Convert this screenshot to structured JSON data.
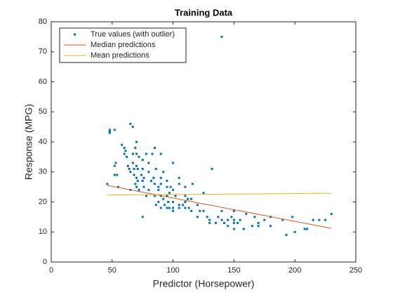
{
  "chart_data": {
    "type": "scatter",
    "title": "Training Data",
    "x_label": "Predictor (Horsepower)",
    "y_label": "Response (MPG)",
    "xlim": [
      0,
      250
    ],
    "xticks": [
      0,
      50,
      100,
      150,
      200,
      250
    ],
    "ylim": [
      0,
      80
    ],
    "yticks": [
      0,
      10,
      20,
      30,
      40,
      50,
      60,
      70,
      80
    ],
    "legend_position": "northwest",
    "series": [
      {
        "name": "True values (with outlier)",
        "type": "scatter",
        "color": "#0072bd",
        "x": [
          46,
          48,
          48,
          48,
          52,
          52,
          52,
          53,
          54,
          55,
          58,
          60,
          60,
          61,
          62,
          63,
          64,
          65,
          65,
          65,
          67,
          67,
          67,
          68,
          68,
          69,
          69,
          70,
          70,
          70,
          70,
          70,
          71,
          71,
          72,
          72,
          74,
          75,
          75,
          75,
          75,
          76,
          76,
          78,
          78,
          80,
          80,
          80,
          82,
          83,
          84,
          85,
          85,
          85,
          86,
          86,
          88,
          88,
          88,
          90,
          90,
          90,
          90,
          90,
          92,
          92,
          93,
          95,
          95,
          95,
          95,
          96,
          97,
          97,
          98,
          100,
          100,
          100,
          100,
          100,
          102,
          105,
          105,
          105,
          105,
          108,
          110,
          110,
          110,
          110,
          112,
          113,
          115,
          115,
          116,
          120,
          120,
          122,
          125,
          125,
          128,
          130,
          130,
          132,
          135,
          137,
          140,
          140,
          140,
          142,
          145,
          145,
          148,
          150,
          150,
          150,
          150,
          153,
          155,
          158,
          160,
          165,
          167,
          170,
          170,
          175,
          180,
          180,
          190,
          193,
          198,
          200,
          208,
          210,
          215,
          220,
          225,
          230
        ],
        "values": [
          26,
          44,
          43,
          43.5,
          29,
          32,
          44,
          33,
          29,
          25,
          39,
          36,
          38,
          37,
          35,
          32,
          31,
          30,
          46,
          24,
          45,
          36,
          33,
          31,
          29,
          38,
          26,
          32,
          28,
          25,
          40,
          36,
          31,
          27,
          35,
          24,
          29,
          27,
          31,
          34,
          15,
          28,
          25,
          36,
          22,
          30,
          24,
          33,
          27,
          36,
          28,
          22,
          26,
          38,
          19,
          31,
          25,
          20,
          24,
          28,
          18,
          22,
          26,
          36,
          21,
          30,
          19,
          25,
          18,
          22,
          27,
          20,
          23,
          18,
          25,
          20,
          18,
          17,
          24,
          33,
          22,
          18,
          26,
          19,
          28,
          19,
          20,
          18,
          22,
          25,
          21,
          18,
          21,
          17,
          26,
          19,
          15,
          17,
          17,
          23,
          15,
          13,
          14,
          31,
          13,
          15,
          75,
          14,
          17,
          13,
          12,
          14,
          15,
          14,
          13,
          17,
          11,
          13,
          14,
          11,
          16,
          12,
          15,
          13,
          12,
          14,
          12,
          15,
          14,
          9,
          15,
          10,
          11,
          11,
          14,
          14,
          14,
          16
        ]
      },
      {
        "name": "Median predictions",
        "type": "line",
        "color": "#d95319",
        "x": [
          46,
          230
        ],
        "values": [
          25.5,
          11.2
        ]
      },
      {
        "name": "Mean predictions",
        "type": "line",
        "color": "#edb120",
        "x": [
          46,
          230
        ],
        "values": [
          22.3,
          22.9
        ]
      }
    ]
  }
}
